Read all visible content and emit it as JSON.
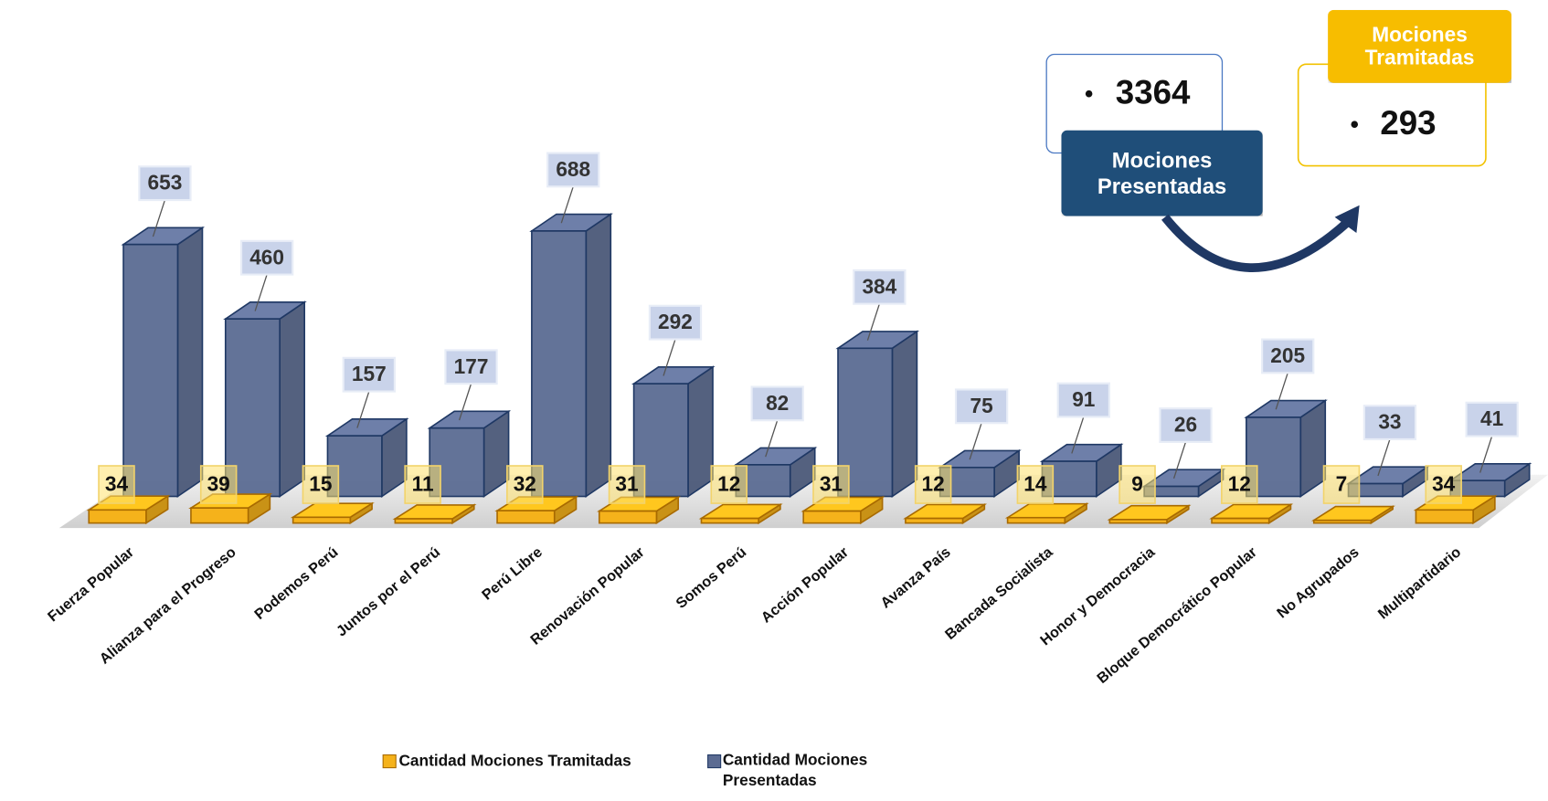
{
  "chart_data": {
    "type": "bar3d",
    "categories": [
      "Fuerza Popular",
      "Alianza para el Progreso",
      "Podemos Perú",
      "Juntos por el Perú",
      "Perú Libre",
      "Renovación Popular",
      "Somos Perú",
      "Acción Popular",
      "Avanza País",
      "Bancada Socialista",
      "Honor y Democracia",
      "Bloque Democrático Popular",
      "No Agrupados",
      "Multipartidario"
    ],
    "series": [
      {
        "name": "Cantidad Mociones Tramitadas",
        "color": "#f5b21b",
        "values": [
          34,
          39,
          15,
          11,
          32,
          31,
          12,
          31,
          12,
          14,
          9,
          12,
          7,
          34
        ]
      },
      {
        "name": "Cantidad Mociones Presentadas",
        "color": "#5b6b92",
        "values": [
          653,
          460,
          157,
          177,
          688,
          292,
          82,
          384,
          75,
          91,
          26,
          205,
          33,
          41
        ]
      }
    ],
    "annotations": [
      {
        "label": "Mociones Presentadas",
        "value": 3364
      },
      {
        "label": "Mociones Tramitadas",
        "value": 293
      }
    ]
  }
}
